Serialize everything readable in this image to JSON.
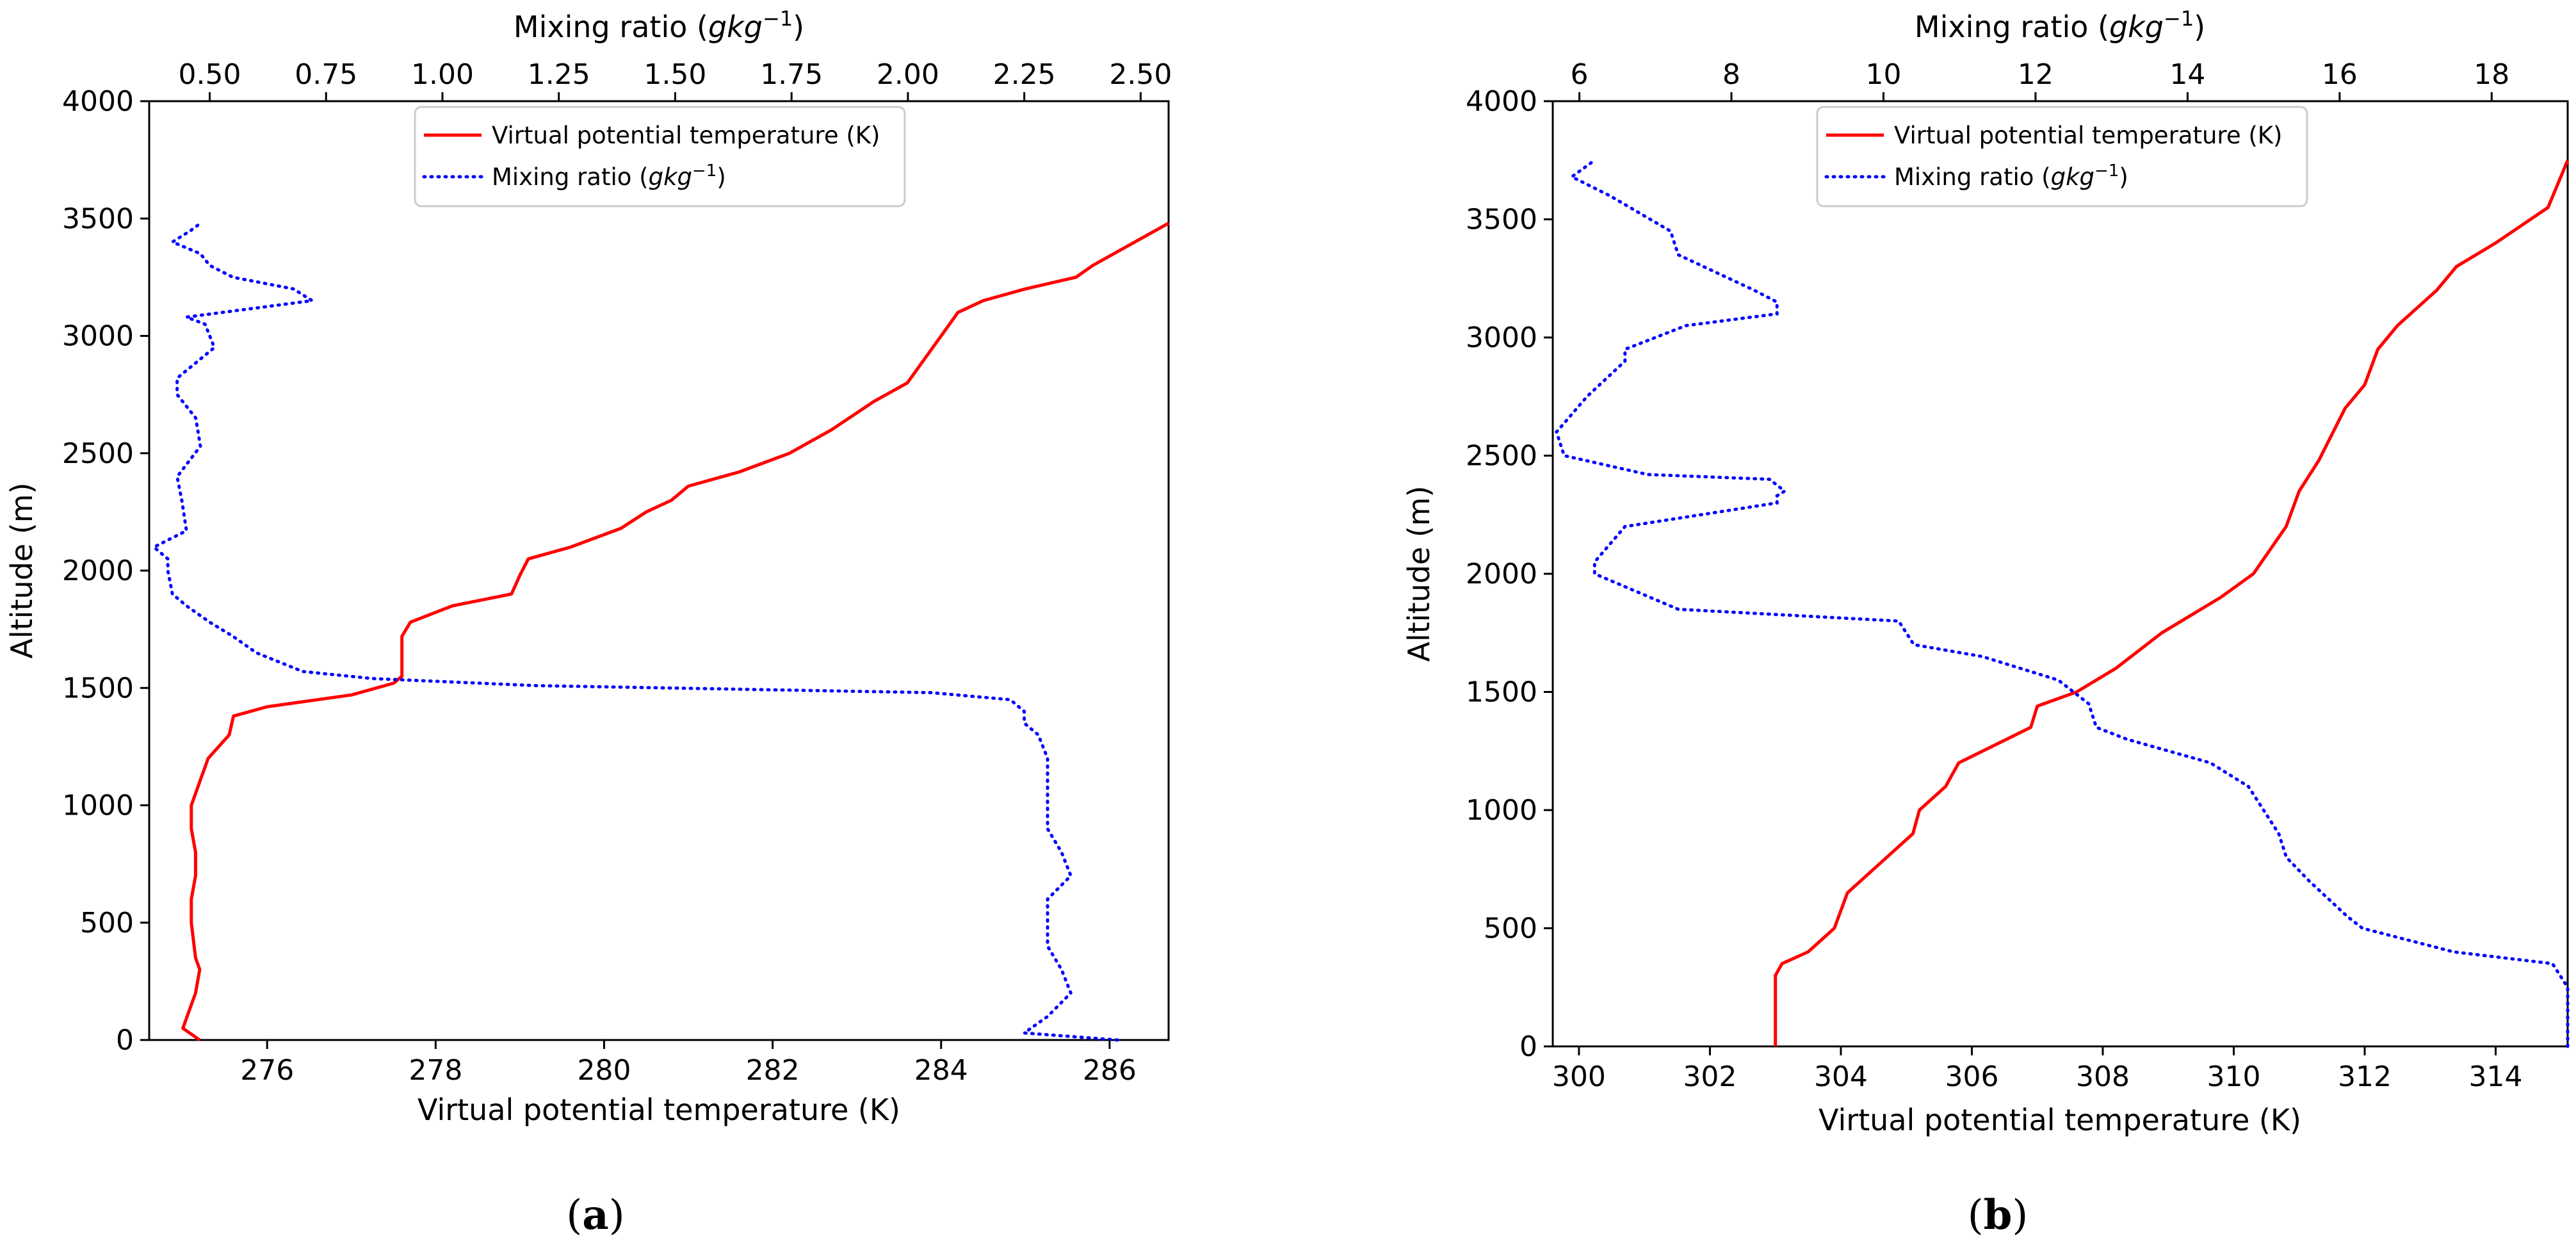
{
  "chart_data": [
    {
      "type": "line",
      "panel_label": "a",
      "title": "",
      "xlabel": "Virtual potential temperature (K)",
      "x2label_prefix": "Mixing ratio (",
      "x2label_unit": "gkg",
      "x2label_exp": "−1",
      "x2label_suffix": ")",
      "ylabel": "Altitude (m)",
      "xlim": [
        274.6,
        286.7
      ],
      "x2lim": [
        0.37,
        2.56
      ],
      "ylim": [
        0,
        4000
      ],
      "xticks": [
        276,
        278,
        280,
        282,
        284,
        286
      ],
      "x2ticks": [
        0.5,
        0.75,
        1.0,
        1.25,
        1.5,
        1.75,
        2.0,
        2.25,
        2.5
      ],
      "x2tick_labels": [
        "0.50",
        "0.75",
        "1.00",
        "1.25",
        "1.50",
        "1.75",
        "2.00",
        "2.25",
        "2.50"
      ],
      "yticks": [
        0,
        500,
        1000,
        1500,
        2000,
        2500,
        3000,
        3500,
        4000
      ],
      "grid": false,
      "legend": {
        "placement": "top-center",
        "entries": [
          {
            "label": "Virtual potential temperature (K)",
            "style": "solid",
            "color": "#ff0000"
          },
          {
            "label_prefix": "Mixing ratio (",
            "label_unit": "gkg",
            "label_exp": "−1",
            "label_suffix": ")",
            "style": "dotted",
            "color": "#0000ff"
          }
        ]
      },
      "series": [
        {
          "name": "Virtual potential temperature (K)",
          "axis": "bottom",
          "color": "#ff0000",
          "style": "solid",
          "x": [
            275.2,
            275.0,
            275.05,
            275.15,
            275.2,
            275.15,
            275.1,
            275.1,
            275.15,
            275.15,
            275.1,
            275.1,
            275.2,
            275.3,
            275.55,
            275.6,
            276.0,
            277.0,
            277.5,
            277.6,
            277.6,
            277.7,
            278.2,
            278.9,
            279.0,
            279.1,
            279.6,
            280.2,
            280.5,
            280.8,
            281.0,
            281.6,
            282.2,
            282.7,
            283.2,
            283.6,
            283.8,
            284.0,
            284.2,
            284.5,
            285.0,
            285.6,
            285.8,
            286.2,
            286.7
          ],
          "y": [
            0,
            50,
            100,
            200,
            300,
            350,
            500,
            600,
            700,
            800,
            900,
            1000,
            1100,
            1200,
            1300,
            1380,
            1420,
            1470,
            1520,
            1550,
            1720,
            1780,
            1850,
            1900,
            1980,
            2050,
            2100,
            2180,
            2250,
            2300,
            2360,
            2420,
            2500,
            2600,
            2720,
            2800,
            2900,
            3000,
            3100,
            3150,
            3200,
            3250,
            3300,
            3380,
            3480
          ]
        },
        {
          "name": "Mixing ratio",
          "axis": "top",
          "color": "#0000ff",
          "style": "dotted",
          "x": [
            2.45,
            2.25,
            2.3,
            2.35,
            2.33,
            2.3,
            2.3,
            2.3,
            2.35,
            2.33,
            2.3,
            2.3,
            2.3,
            2.3,
            2.28,
            2.25,
            2.25,
            2.22,
            2.05,
            1.2,
            0.85,
            0.7,
            0.6,
            0.55,
            0.5,
            0.45,
            0.42,
            0.41,
            0.41,
            0.38,
            0.45,
            0.44,
            0.43,
            0.48,
            0.47,
            0.43,
            0.43,
            0.51,
            0.49,
            0.45,
            0.72,
            0.68,
            0.55,
            0.5,
            0.48,
            0.42,
            0.46,
            0.48
          ],
          "y": [
            0,
            30,
            100,
            200,
            300,
            400,
            500,
            600,
            700,
            800,
            900,
            1000,
            1100,
            1200,
            1300,
            1350,
            1400,
            1450,
            1480,
            1510,
            1540,
            1570,
            1650,
            1720,
            1780,
            1850,
            1900,
            2000,
            2050,
            2100,
            2170,
            2300,
            2400,
            2530,
            2650,
            2750,
            2820,
            2950,
            3050,
            3080,
            3150,
            3200,
            3250,
            3300,
            3350,
            3400,
            3450,
            3480
          ]
        }
      ]
    },
    {
      "type": "line",
      "panel_label": "b",
      "title": "",
      "xlabel": "Virtual potential temperature (K)",
      "x2label_prefix": "Mixing ratio (",
      "x2label_unit": "gkg",
      "x2label_exp": "−1",
      "x2label_suffix": ")",
      "ylabel": "Altitude (m)",
      "xlim": [
        299.6,
        315.1
      ],
      "x2lim": [
        5.65,
        19.0
      ],
      "ylim": [
        0,
        4000
      ],
      "xticks": [
        300,
        302,
        304,
        306,
        308,
        310,
        312,
        314
      ],
      "x2ticks": [
        6,
        8,
        10,
        12,
        14,
        16,
        18
      ],
      "x2tick_labels": [
        "6",
        "8",
        "10",
        "12",
        "14",
        "16",
        "18"
      ],
      "yticks": [
        0,
        500,
        1000,
        1500,
        2000,
        2500,
        3000,
        3500,
        4000
      ],
      "grid": false,
      "legend": {
        "placement": "top-center",
        "entries": [
          {
            "label": "Virtual potential temperature (K)",
            "style": "solid",
            "color": "#ff0000"
          },
          {
            "label_prefix": "Mixing ratio (",
            "label_unit": "gkg",
            "label_exp": "−1",
            "label_suffix": ")",
            "style": "dotted",
            "color": "#0000ff"
          }
        ]
      },
      "series": [
        {
          "name": "Virtual potential temperature (K)",
          "axis": "bottom",
          "color": "#ff0000",
          "style": "solid",
          "x": [
            303.0,
            303.0,
            303.1,
            303.5,
            303.9,
            304.1,
            304.3,
            304.7,
            305.1,
            305.2,
            305.6,
            305.8,
            306.9,
            307.0,
            307.6,
            308.2,
            308.9,
            309.2,
            309.8,
            310.3,
            310.8,
            311.0,
            311.3,
            311.7,
            312.0,
            312.2,
            312.5,
            313.1,
            313.4,
            314.0,
            314.8,
            315.1
          ],
          "y": [
            0,
            300,
            350,
            400,
            500,
            650,
            700,
            800,
            900,
            1000,
            1100,
            1200,
            1350,
            1440,
            1500,
            1600,
            1750,
            1800,
            1900,
            2000,
            2200,
            2350,
            2480,
            2700,
            2800,
            2950,
            3050,
            3200,
            3300,
            3400,
            3550,
            3750
          ]
        },
        {
          "name": "Mixing ratio",
          "axis": "top",
          "color": "#0000ff",
          "style": "dotted",
          "x": [
            19.0,
            19.0,
            18.8,
            17.5,
            16.3,
            16.1,
            15.6,
            15.3,
            15.2,
            15.0,
            14.8,
            14.3,
            13.2,
            12.8,
            12.7,
            12.3,
            11.3,
            10.4,
            10.2,
            7.3,
            6.2,
            6.2,
            6.6,
            8.6,
            8.6,
            8.7,
            8.5,
            6.9,
            5.8,
            5.7,
            6.1,
            6.6,
            6.6,
            7.4,
            8.6,
            8.6,
            8.3,
            7.3,
            7.2,
            6.4,
            5.9,
            6.2
          ],
          "y": [
            0,
            250,
            350,
            400,
            500,
            550,
            700,
            800,
            900,
            1000,
            1100,
            1200,
            1300,
            1350,
            1450,
            1550,
            1650,
            1700,
            1800,
            1850,
            2000,
            2050,
            2200,
            2300,
            2330,
            2350,
            2400,
            2420,
            2500,
            2600,
            2750,
            2900,
            2950,
            3050,
            3100,
            3150,
            3200,
            3350,
            3450,
            3600,
            3680,
            3750
          ]
        }
      ]
    }
  ]
}
